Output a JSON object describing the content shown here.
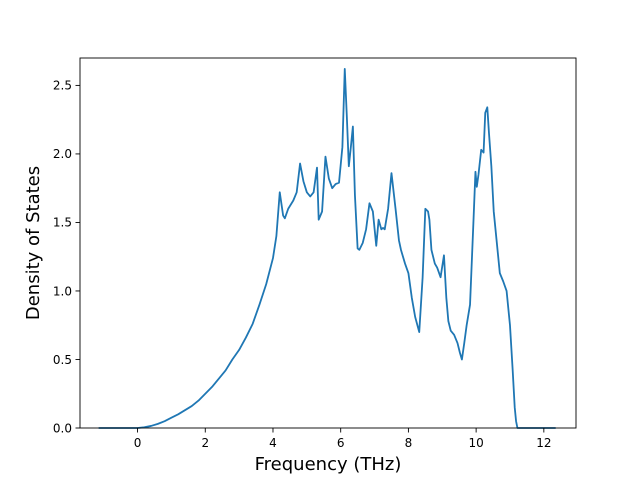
{
  "chart_data": {
    "type": "line",
    "xlabel": "Frequency (THz)",
    "ylabel": "Density of States",
    "xlim": [
      -1.7,
      12.95
    ],
    "ylim": [
      0,
      2.7
    ],
    "xticks": [
      0,
      2,
      4,
      6,
      8,
      10,
      12
    ],
    "yticks": [
      0.0,
      0.5,
      1.0,
      1.5,
      2.0,
      2.5
    ],
    "x_tick_labels": [
      "0",
      "2",
      "4",
      "6",
      "8",
      "10",
      "12"
    ],
    "y_tick_labels": [
      "0.0",
      "0.5",
      "1.0",
      "1.5",
      "2.0",
      "2.5"
    ],
    "grid": false,
    "legend": "none",
    "colors": {
      "line": "#1f77b4",
      "axes": "#000000",
      "background": "#ffffff"
    },
    "series": [
      {
        "x": [
          -1.15,
          -0.5,
          0.0,
          0.2,
          0.4,
          0.6,
          0.8,
          1.0,
          1.2,
          1.4,
          1.6,
          1.8,
          2.0,
          2.2,
          2.4,
          2.6,
          2.8,
          3.0,
          3.2,
          3.4,
          3.6,
          3.8,
          4.0,
          4.1,
          4.2,
          4.3,
          4.35,
          4.45,
          4.6,
          4.7,
          4.8,
          4.9,
          5.0,
          5.1,
          5.2,
          5.3,
          5.35,
          5.45,
          5.55,
          5.65,
          5.75,
          5.85,
          5.95,
          6.05,
          6.12,
          6.18,
          6.24,
          6.3,
          6.36,
          6.42,
          6.5,
          6.55,
          6.65,
          6.75,
          6.85,
          6.95,
          7.05,
          7.12,
          7.2,
          7.25,
          7.3,
          7.4,
          7.5,
          7.62,
          7.72,
          7.78,
          7.9,
          8.0,
          8.1,
          8.2,
          8.32,
          8.42,
          8.5,
          8.58,
          8.62,
          8.68,
          8.78,
          8.85,
          8.95,
          9.05,
          9.12,
          9.18,
          9.25,
          9.35,
          9.45,
          9.52,
          9.58,
          9.65,
          9.72,
          9.82,
          9.92,
          9.98,
          10.02,
          10.07,
          10.15,
          10.22,
          10.27,
          10.33,
          10.38,
          10.45,
          10.52,
          10.6,
          10.7,
          10.8,
          10.9,
          11.0,
          11.08,
          11.14,
          11.18,
          11.22,
          11.3,
          11.6,
          12.35
        ],
        "y": [
          0.0,
          0.0,
          0.0,
          0.005,
          0.015,
          0.03,
          0.05,
          0.075,
          0.1,
          0.13,
          0.16,
          0.2,
          0.25,
          0.3,
          0.36,
          0.42,
          0.5,
          0.57,
          0.66,
          0.76,
          0.9,
          1.05,
          1.24,
          1.4,
          1.72,
          1.55,
          1.53,
          1.6,
          1.66,
          1.72,
          1.93,
          1.8,
          1.72,
          1.69,
          1.72,
          1.9,
          1.52,
          1.58,
          1.98,
          1.82,
          1.75,
          1.78,
          1.79,
          2.05,
          2.62,
          2.28,
          1.91,
          2.05,
          2.2,
          1.7,
          1.31,
          1.3,
          1.35,
          1.45,
          1.64,
          1.58,
          1.33,
          1.52,
          1.45,
          1.46,
          1.45,
          1.6,
          1.86,
          1.6,
          1.37,
          1.3,
          1.2,
          1.13,
          0.95,
          0.81,
          0.7,
          1.1,
          1.6,
          1.58,
          1.52,
          1.3,
          1.2,
          1.17,
          1.1,
          1.26,
          0.95,
          0.78,
          0.71,
          0.68,
          0.62,
          0.55,
          0.5,
          0.62,
          0.75,
          0.9,
          1.5,
          1.87,
          1.76,
          1.85,
          2.03,
          2.01,
          2.3,
          2.34,
          2.15,
          1.91,
          1.58,
          1.38,
          1.13,
          1.07,
          1.0,
          0.75,
          0.42,
          0.15,
          0.05,
          0.0,
          0.0,
          0.0,
          0.0
        ]
      }
    ]
  }
}
